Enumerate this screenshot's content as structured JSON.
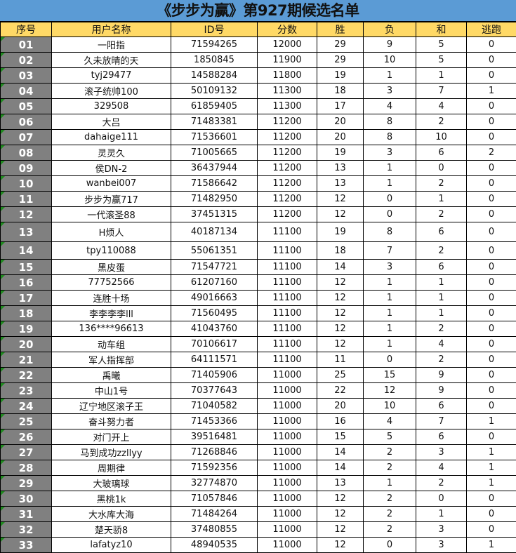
{
  "title": "《步步为赢》第927期候选名单",
  "headers": [
    "序号",
    "用户名称",
    "ID号",
    "分数",
    "胜",
    "负",
    "和",
    "逃跑"
  ],
  "colors": {
    "title_bg": "#5b9bd5",
    "header_bg": "#ffd966",
    "index_bg": "#808080",
    "marker": "#1f8a1f"
  },
  "rows": [
    [
      "01",
      "一阳指",
      "71594265",
      "12000",
      "29",
      "9",
      "5",
      "0"
    ],
    [
      "02",
      "久未放晴的天",
      "1850845",
      "11900",
      "29",
      "10",
      "5",
      "0"
    ],
    [
      "03",
      "tyj29477",
      "14588284",
      "11800",
      "19",
      "1",
      "1",
      "0"
    ],
    [
      "04",
      "滚子统帅100",
      "50109132",
      "11300",
      "18",
      "3",
      "7",
      "1"
    ],
    [
      "05",
      "329508",
      "61859405",
      "11300",
      "17",
      "4",
      "4",
      "0"
    ],
    [
      "06",
      "大吕",
      "71483381",
      "11200",
      "20",
      "8",
      "2",
      "0"
    ],
    [
      "07",
      "dahaige111",
      "71536601",
      "11200",
      "20",
      "8",
      "10",
      "0"
    ],
    [
      "08",
      "灵灵久",
      "71005665",
      "11200",
      "19",
      "3",
      "6",
      "2"
    ],
    [
      "09",
      "侯DN-2",
      "36437944",
      "11200",
      "13",
      "1",
      "0",
      "0"
    ],
    [
      "10",
      "wanbei007",
      "71586642",
      "11200",
      "13",
      "1",
      "2",
      "0"
    ],
    [
      "11",
      "步步为赢717",
      "71482950",
      "11200",
      "12",
      "0",
      "1",
      "0"
    ],
    [
      "12",
      "一代滚圣88",
      "37451315",
      "11200",
      "12",
      "0",
      "2",
      "0"
    ],
    [
      "13",
      "H烦人",
      "40187134",
      "11100",
      "19",
      "8",
      "6",
      "0"
    ],
    [
      "14",
      "tpy110088",
      "55061351",
      "11100",
      "18",
      "7",
      "2",
      "0"
    ],
    [
      "15",
      "黑皮蛋",
      "71547721",
      "11100",
      "14",
      "3",
      "6",
      "0"
    ],
    [
      "16",
      "77752566",
      "61207160",
      "11100",
      "12",
      "1",
      "1",
      "0"
    ],
    [
      "17",
      "连胜十场",
      "49016663",
      "11100",
      "12",
      "1",
      "1",
      "0"
    ],
    [
      "18",
      "李李李李lll",
      "71560495",
      "11100",
      "12",
      "1",
      "1",
      "0"
    ],
    [
      "19",
      "136****96613",
      "41043760",
      "11100",
      "12",
      "1",
      "2",
      "0"
    ],
    [
      "20",
      "动车组",
      "70106617",
      "11100",
      "12",
      "1",
      "4",
      "0"
    ],
    [
      "21",
      "军人指挥部",
      "64111571",
      "11100",
      "11",
      "0",
      "2",
      "0"
    ],
    [
      "22",
      "禹曦",
      "71405906",
      "11000",
      "25",
      "15",
      "9",
      "0"
    ],
    [
      "23",
      "中山1号",
      "70377643",
      "11000",
      "22",
      "12",
      "9",
      "0"
    ],
    [
      "24",
      "辽宁地区滚子王",
      "71040582",
      "11000",
      "20",
      "10",
      "6",
      "0"
    ],
    [
      "25",
      "奋斗努力者",
      "71453366",
      "11000",
      "16",
      "4",
      "7",
      "1"
    ],
    [
      "26",
      "对门开上",
      "39516481",
      "11000",
      "15",
      "5",
      "6",
      "0"
    ],
    [
      "27",
      "马到成功zzllyy",
      "71268846",
      "11000",
      "14",
      "2",
      "3",
      "1"
    ],
    [
      "28",
      "周期律",
      "71592356",
      "11000",
      "14",
      "2",
      "4",
      "1"
    ],
    [
      "29",
      "大玻璃球",
      "32774870",
      "11000",
      "13",
      "1",
      "2",
      "1"
    ],
    [
      "30",
      "黑桃1k",
      "71057846",
      "11000",
      "12",
      "2",
      "0",
      "0"
    ],
    [
      "31",
      "大水库大海",
      "71484264",
      "11000",
      "12",
      "2",
      "1",
      "0"
    ],
    [
      "32",
      "楚天骄8",
      "37480855",
      "11000",
      "12",
      "2",
      "3",
      "0"
    ],
    [
      "33",
      "lafatyz10",
      "48940535",
      "11000",
      "12",
      "0",
      "3",
      "1"
    ]
  ]
}
